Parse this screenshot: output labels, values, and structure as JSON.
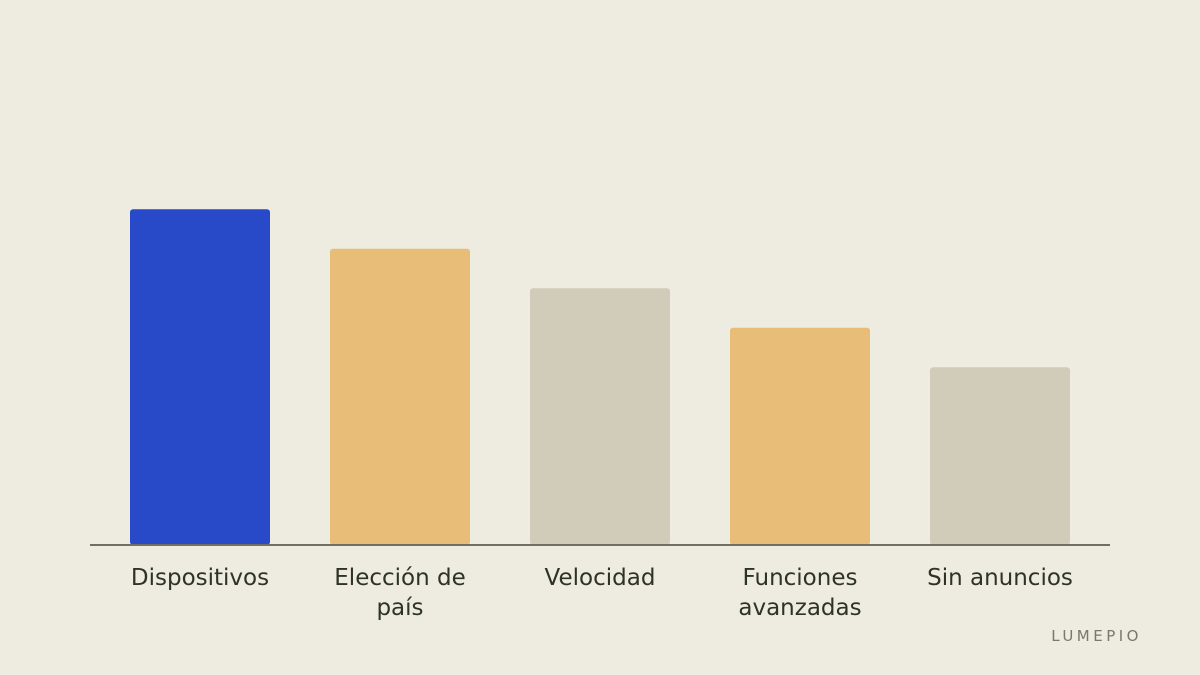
{
  "brand": {
    "name": "LUMEPIO"
  },
  "chart_data": {
    "type": "bar",
    "title": "",
    "xlabel": "",
    "ylabel": "",
    "categories": [
      "Dispositivos",
      "Elección de país",
      "Velocidad",
      "Funciones avanzadas",
      "Sin anuncios"
    ],
    "category_lines": [
      [
        "Dispositivos"
      ],
      [
        "Elección de",
        "país"
      ],
      [
        "Velocidad"
      ],
      [
        "Funciones",
        "avanzadas"
      ],
      [
        "Sin anuncios"
      ]
    ],
    "values": [
      85,
      75,
      65,
      55,
      45
    ],
    "ylim": [
      0,
      100
    ],
    "grid": false,
    "legend": "none",
    "colors": [
      "#2849C8",
      "#E8BD78",
      "#D1CCBA",
      "#E8BD78",
      "#D1CCBA"
    ],
    "axis_color": "#6E7066"
  }
}
